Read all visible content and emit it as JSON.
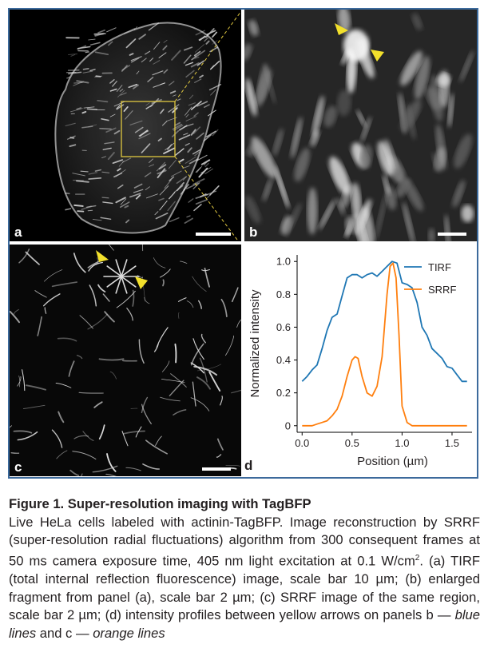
{
  "panels": {
    "a": {
      "label": "a"
    },
    "b": {
      "label": "b"
    },
    "c": {
      "label": "c"
    },
    "d": {
      "label": "d"
    }
  },
  "chart_data": {
    "type": "line",
    "xlabel": "Position (µm)",
    "ylabel": "Normalized intensity",
    "xlim": [
      -0.05,
      1.7
    ],
    "ylim": [
      -0.04,
      1.04
    ],
    "x_ticks": [
      "0.0",
      "0.5",
      "1.0",
      "1.5"
    ],
    "y_ticks": [
      "0",
      "0.2",
      "0.4",
      "0.6",
      "0.8",
      "1.0"
    ],
    "legend_position": "top-right",
    "series": [
      {
        "name": "TIRF",
        "color": "#1f77b4",
        "x": [
          0.0,
          0.05,
          0.1,
          0.15,
          0.2,
          0.25,
          0.3,
          0.35,
          0.4,
          0.45,
          0.5,
          0.55,
          0.6,
          0.65,
          0.7,
          0.75,
          0.8,
          0.85,
          0.9,
          0.95,
          1.0,
          1.05,
          1.1,
          1.15,
          1.2,
          1.25,
          1.3,
          1.35,
          1.4,
          1.45,
          1.5,
          1.55,
          1.6,
          1.65
        ],
        "y": [
          0.27,
          0.3,
          0.34,
          0.37,
          0.47,
          0.58,
          0.66,
          0.68,
          0.79,
          0.9,
          0.92,
          0.92,
          0.9,
          0.92,
          0.93,
          0.91,
          0.94,
          0.97,
          1.0,
          0.99,
          0.87,
          0.86,
          0.84,
          0.75,
          0.6,
          0.55,
          0.47,
          0.44,
          0.41,
          0.36,
          0.35,
          0.31,
          0.27,
          0.27
        ]
      },
      {
        "name": "SRRF",
        "color": "#ff7f0e",
        "x": [
          0.0,
          0.05,
          0.1,
          0.15,
          0.2,
          0.25,
          0.3,
          0.35,
          0.4,
          0.45,
          0.5,
          0.53,
          0.56,
          0.6,
          0.65,
          0.7,
          0.75,
          0.8,
          0.85,
          0.88,
          0.91,
          0.94,
          0.97,
          1.0,
          1.05,
          1.1,
          1.2,
          1.3,
          1.4,
          1.5,
          1.6,
          1.65
        ],
        "y": [
          0.0,
          0.0,
          0.0,
          0.01,
          0.02,
          0.03,
          0.06,
          0.1,
          0.18,
          0.3,
          0.4,
          0.42,
          0.41,
          0.3,
          0.2,
          0.18,
          0.24,
          0.42,
          0.8,
          0.97,
          0.99,
          0.9,
          0.55,
          0.12,
          0.02,
          0.0,
          0.0,
          0.0,
          0.0,
          0.0,
          0.0,
          0.0
        ]
      }
    ]
  },
  "caption": {
    "title": "Figure 1. Super-resolution imaging with TagBFP",
    "body_main": "Live HeLa cells labeled with actinin-TagBFP. Image reconstruction by SRRF (super-resolution radial fluctuations) algorithm from 300 consequent frames at 50 ms camera exposure time, 405 nm light excitation at 0.1 W/cm",
    "body_sup": "2",
    "body_rest": ". (a) TIRF (total internal reflection fluorescence) image, scale bar 10 µm; (b) enlarged fragment from panel (a), scale bar 2 µm; (c) SRRF image of the same region, scale bar 2 µm; (d) intensity profiles between yellow arrows on panels b —",
    "blue_lines": "blue lines",
    "and_c": "and c —",
    "orange_lines": "orange lines"
  },
  "colors": {
    "frame": "#3c6a9c",
    "roi": "#e0c840",
    "arrow": "#f2e02c"
  }
}
